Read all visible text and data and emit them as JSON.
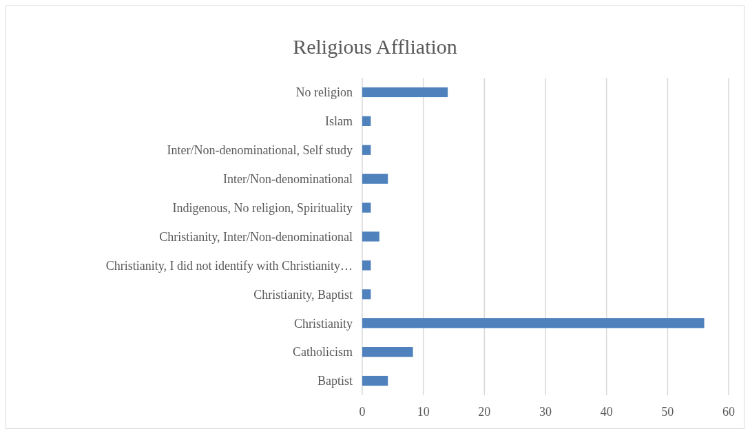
{
  "chart_data": {
    "type": "bar",
    "orientation": "horizontal",
    "title": "Religious Affliation",
    "categories": [
      "No religion",
      "Islam",
      "Inter/Non-denominational, Self study",
      "Inter/Non-denominational",
      "Indigenous, No religion, Spirituality",
      "Christianity, Inter/Non-denominational",
      "Christianity, I did not identify with Christianity…",
      "Christianity, Baptist",
      "Christianity",
      "Catholicism",
      "Baptist"
    ],
    "values": [
      14,
      1.4,
      1.4,
      4.2,
      1.4,
      2.8,
      1.4,
      1.4,
      56,
      8.3,
      4.2
    ],
    "color": "#4f81bd",
    "xlim": [
      0,
      60
    ],
    "xticks": [
      0,
      10,
      20,
      30,
      40,
      50,
      60
    ],
    "grid": "x"
  }
}
